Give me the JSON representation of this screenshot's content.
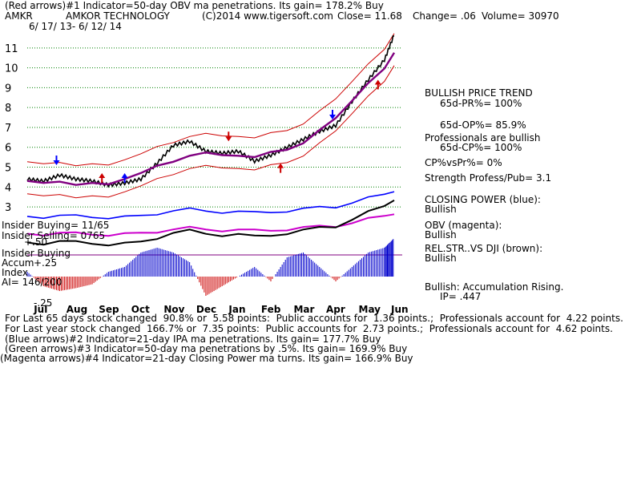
{
  "header": {
    "line1": "(Red arrows)#1 Indicator=50-day OBV ma penetrations. Its gain= 178.2% Buy",
    "ticker": "AMKR",
    "company": "AMKOR TECHNOLOGY",
    "copyright": "(C)2014 www.tigersoft.com",
    "close": "Close= 11.68",
    "change": "Change= .06",
    "volume": "Volume= 30970",
    "date_range": "6/ 17/ 13- 6/ 12/ 14"
  },
  "left_labels": {
    "insider_buying": "Insider Buying= 11/65",
    "insider_selling": "Insider Selling= 0765",
    "insider_buying2": "Insider Buying",
    "plus50": "+.50",
    "accum": "Accum",
    "plus25": "+.25",
    "index": "Index",
    "ai": "AI= 146/200",
    "minus25": "-.25"
  },
  "right_panel": {
    "trend": "BULLISH PRICE TREND",
    "pr65": "65d-PR%= 100%",
    "op65": "65d-OP%= 85.9%",
    "pros": "Professionals are bullish",
    "cp65": "65d-CP%= 100%",
    "cpvspr": "CP%vsPr%= 0%",
    "strength": "Strength Profess/Pub= 3.1",
    "closing_power": "CLOSING POWER (blue):",
    "cp_status": "Bullish",
    "obv": "OBV (magenta):",
    "obv_status": "Bullish",
    "relstr": "REL.STR..VS DJI (brown):",
    "relstr_status": "Bullish",
    "accum_status": "Bullish: Accumulation Rising.",
    "ip": "IP= .447"
  },
  "footer": {
    "line1": "For Last 65 days stock changed  90.8% or  5.58 points:  Public accounts for  1.36 points.;  Professionals account for  4.22 points.",
    "line2": "For Last year stock changed  166.7% or  7.35 points:  Public accounts for  2.73 points.;  Professionals account for  4.62 points.",
    "line3": "(Blue arrows)#2 Indicator=21-day IPA ma penetrations. Its gain= 177.7% Buy",
    "line4": "(Green arrows)#3 Indicator=50-day ma penetrations by .5%. Its gain= 169.9% Buy",
    "line5": "(Magenta arrows)#4 Indicator=21-day Closing Power ma turns. Its gain= 166.9% Buy"
  },
  "colors": {
    "price": "#000000",
    "band": "#cc0000",
    "closing_power": "#0000ff",
    "obv": "#cc00cc",
    "relstr": "#000000",
    "ma": "#800080",
    "grid": "#008000",
    "accum_pos": "#0000cc",
    "accum_neg": "#cc0000"
  },
  "chart_data": {
    "type": "line",
    "title": "AMKOR TECHNOLOGY",
    "x_ticks": [
      "Jul",
      "Aug",
      "Sep",
      "Oct",
      "Nov",
      "Dec",
      "Jan",
      "Feb",
      "Mar",
      "Apr",
      "May",
      "Jun"
    ],
    "y_ticks": [
      3,
      4,
      5,
      6,
      7,
      8,
      9,
      10,
      11
    ],
    "ylim": [
      2.6,
      11.8
    ],
    "grid": true,
    "series": [
      {
        "name": "Price",
        "x": [
          0,
          0.5,
          1,
          1.5,
          2,
          2.5,
          3,
          3.5,
          4,
          4.5,
          5,
          5.5,
          6,
          6.5,
          7,
          7.5,
          8,
          8.5,
          9,
          9.5,
          10,
          10.5,
          11,
          11.3
        ],
        "values": [
          4.4,
          4.3,
          4.6,
          4.4,
          4.3,
          4.1,
          4.2,
          4.4,
          5.2,
          6.1,
          6.3,
          5.8,
          5.7,
          5.8,
          5.3,
          5.6,
          6.0,
          6.4,
          6.8,
          7.1,
          8.3,
          9.4,
          10.4,
          11.68
        ]
      }
    ],
    "accumulation_index": {
      "ylim": [
        -0.25,
        0.5
      ],
      "x": [
        0,
        0.5,
        1,
        1.5,
        2,
        2.5,
        3,
        3.5,
        4,
        4.5,
        5,
        5.5,
        6,
        6.5,
        7,
        7.5,
        8,
        8.5,
        9,
        9.5,
        10,
        10.5,
        11,
        11.3
      ],
      "values": [
        0.05,
        -0.1,
        -0.15,
        -0.12,
        -0.08,
        0.05,
        0.1,
        0.25,
        0.3,
        0.25,
        0.15,
        -0.2,
        -0.1,
        0.0,
        0.1,
        -0.05,
        0.2,
        0.25,
        0.1,
        -0.05,
        0.1,
        0.25,
        0.3,
        0.4
      ]
    }
  }
}
